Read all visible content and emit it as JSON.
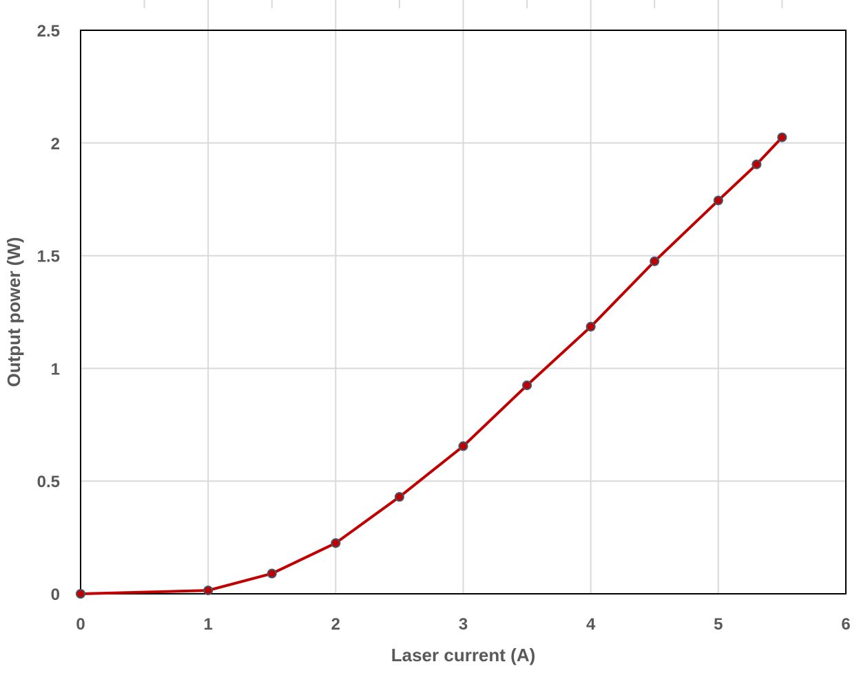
{
  "chart_data": {
    "type": "line",
    "title": "",
    "xlabel": "Laser current (A)",
    "ylabel": "Output power (W)",
    "xlim": [
      0,
      6
    ],
    "ylim": [
      0,
      2.5
    ],
    "x_ticks": [
      "0",
      "1",
      "2",
      "3",
      "4",
      "5",
      "6"
    ],
    "y_ticks": [
      "0",
      "0.5",
      "1",
      "1.5",
      "2",
      "2.5"
    ],
    "grid": true,
    "legend": "none",
    "series": [
      {
        "x": [
          0,
          1,
          1.5,
          2,
          2.5,
          3,
          3.5,
          4,
          4.5,
          5,
          5.3,
          5.5
        ],
        "y": [
          0,
          0.015,
          0.09,
          0.225,
          0.43,
          0.655,
          0.925,
          1.185,
          1.475,
          1.745,
          1.905,
          2.025
        ],
        "line_color": "#c00000",
        "marker_fill": "#c00000",
        "marker_edge": "#44546a"
      }
    ]
  }
}
